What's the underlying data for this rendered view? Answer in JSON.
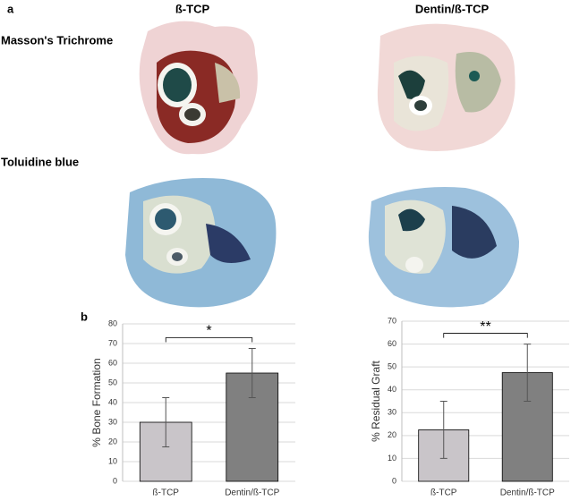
{
  "figure": {
    "panel_a": "a",
    "panel_b": "b",
    "columns": [
      "ß-TCP",
      "Dentin/ß-TCP"
    ],
    "rows": [
      "Masson's Trichrome",
      "Toluidine blue"
    ]
  },
  "chart_data": [
    {
      "type": "bar",
      "ylabel": "% Bone Formation",
      "categories": [
        "ß-TCP",
        "Dentin/ß-TCP"
      ],
      "values": [
        30,
        55
      ],
      "errors": [
        12.5,
        12.5
      ],
      "colors": [
        "#c9c5c9",
        "#808080"
      ],
      "ylim": [
        0,
        80
      ],
      "yticks": [
        0,
        10,
        20,
        30,
        40,
        50,
        60,
        70,
        80
      ],
      "grid": true,
      "annotation": "*"
    },
    {
      "type": "bar",
      "ylabel": "% Residual Graft",
      "categories": [
        "ß-TCP",
        "Dentin/ß-TCP"
      ],
      "values": [
        22.5,
        47.5
      ],
      "errors": [
        12.5,
        12.5
      ],
      "colors": [
        "#c9c5c9",
        "#808080"
      ],
      "ylim": [
        0,
        70
      ],
      "yticks": [
        0,
        10,
        20,
        30,
        40,
        50,
        60,
        70
      ],
      "grid": true,
      "annotation": "**"
    }
  ]
}
